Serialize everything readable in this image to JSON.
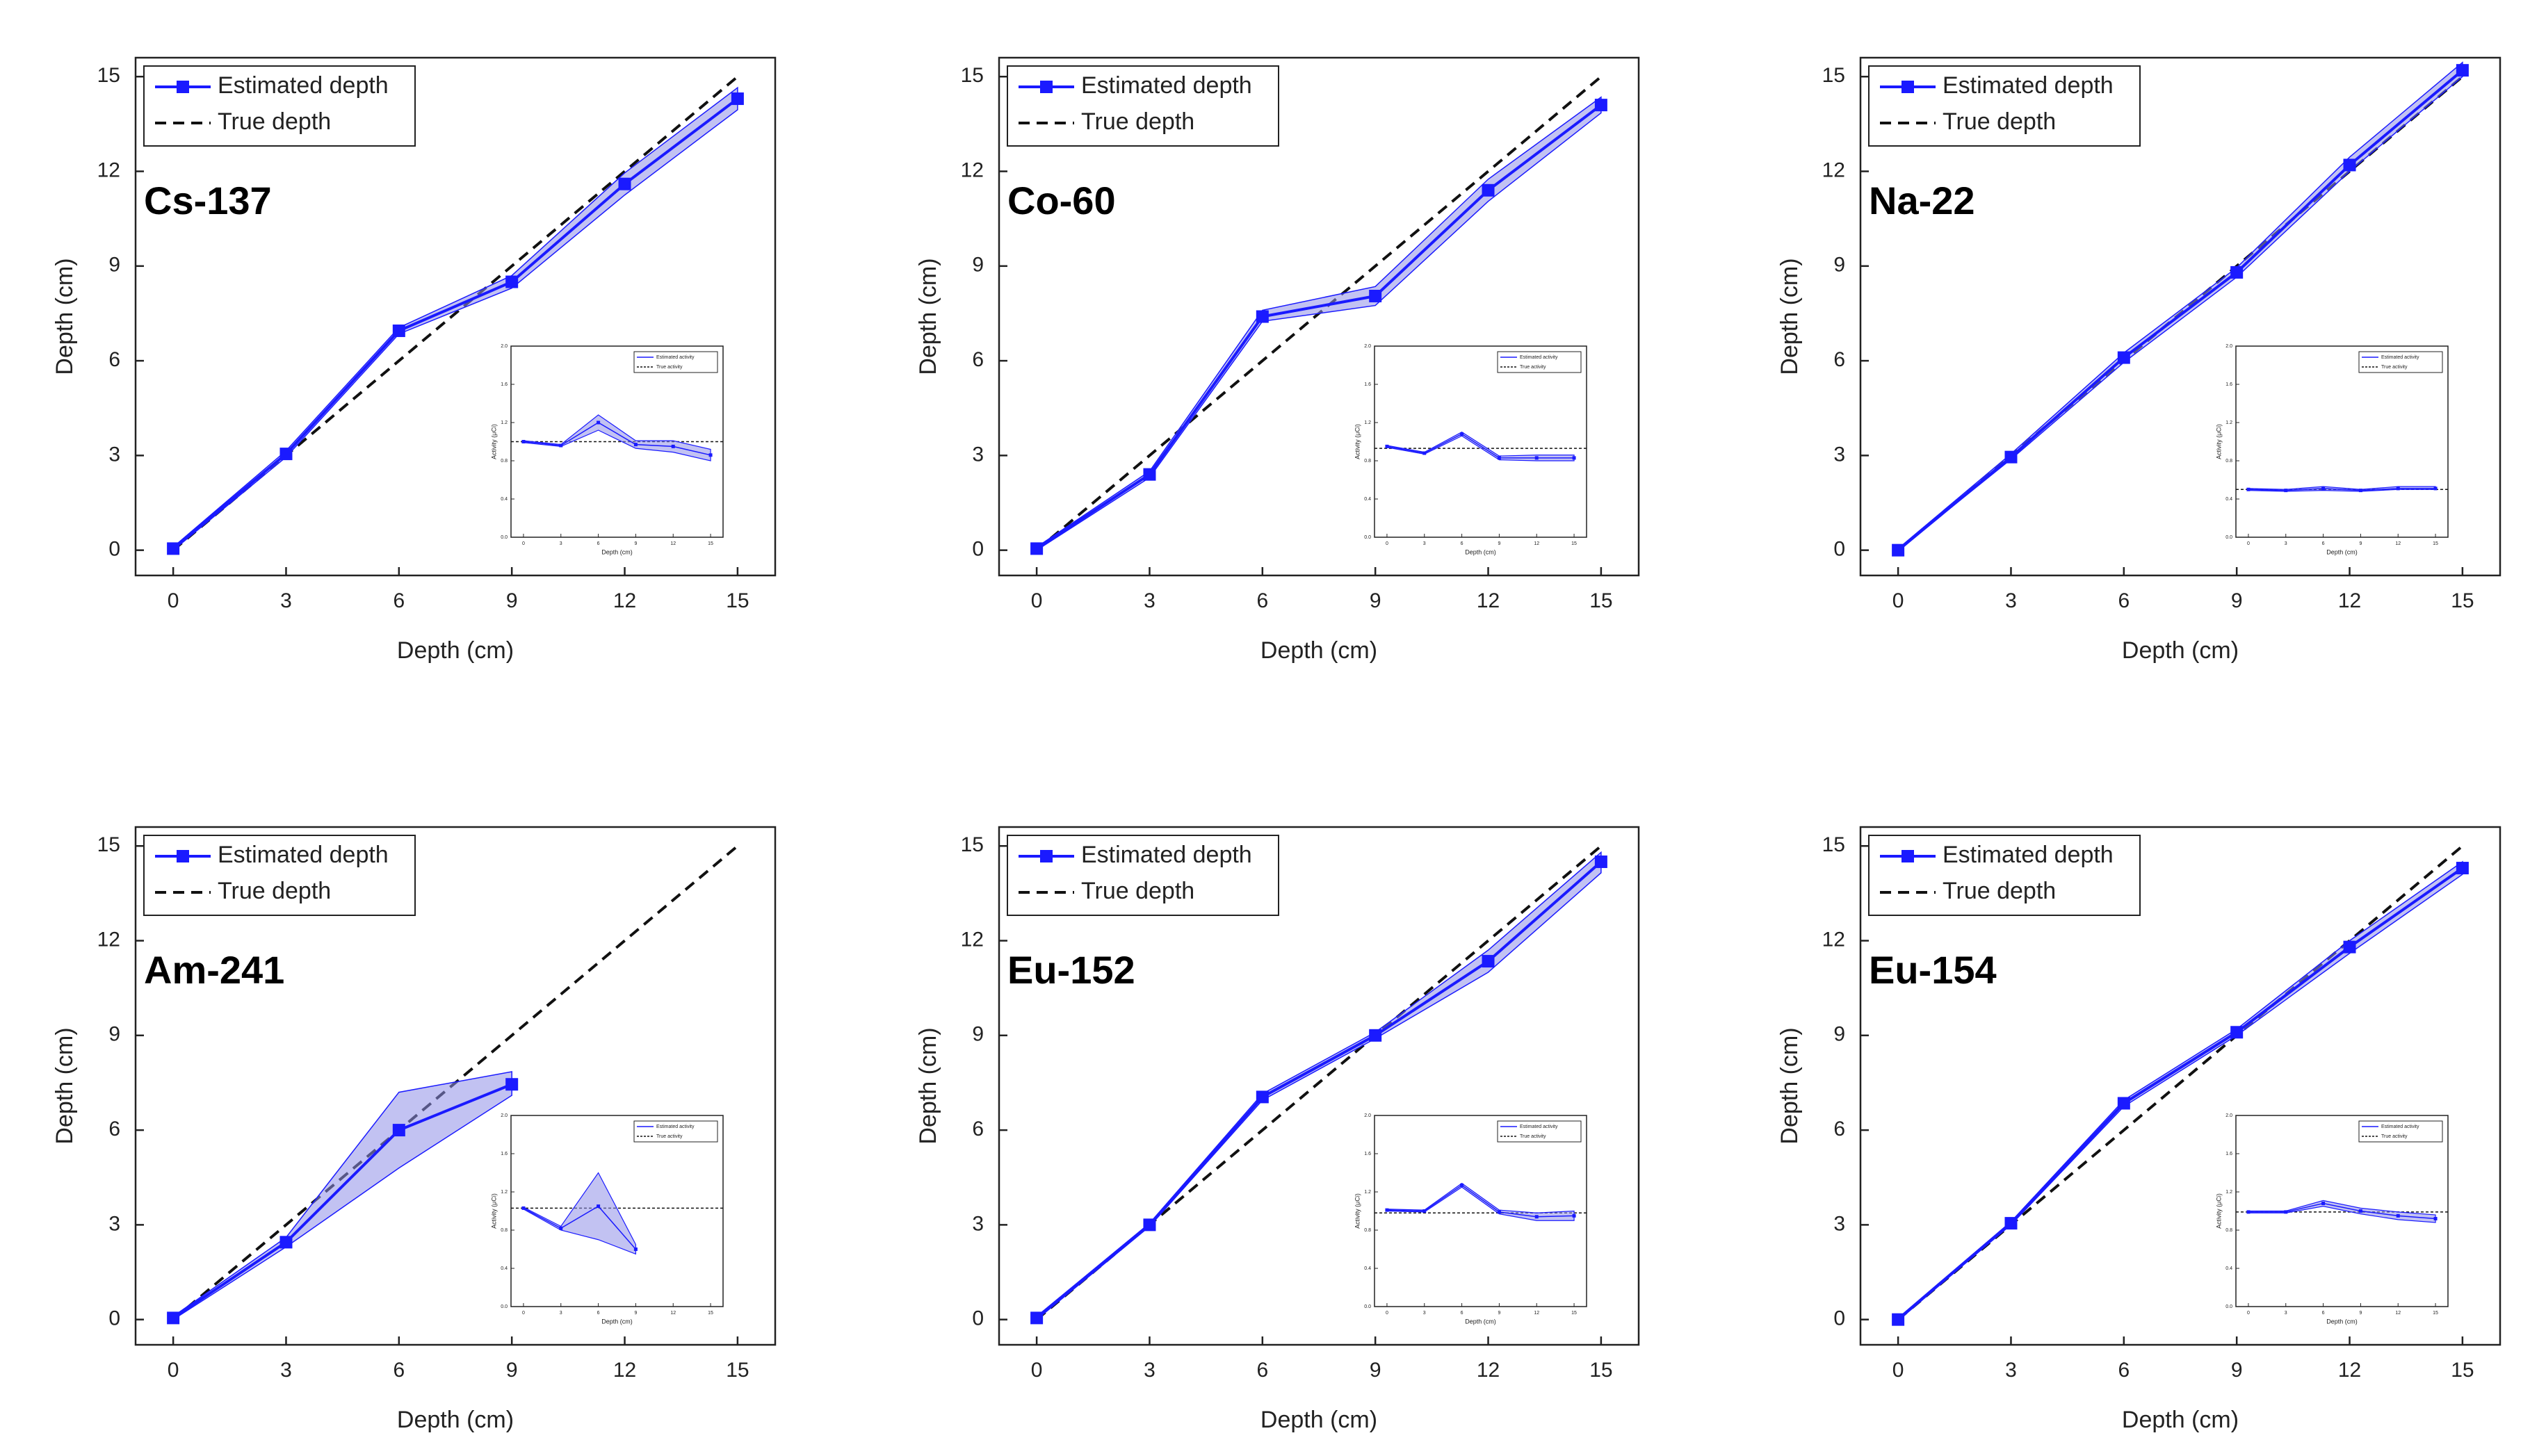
{
  "colors": {
    "estimated": "#1a1aff",
    "band": "#8f8fe8",
    "true_line": "#111111",
    "axis": "#222222",
    "background": "#ffffff"
  },
  "chart_data": [
    {
      "type": "line",
      "title": "Cs-137",
      "xlabel": "Depth (cm)",
      "ylabel": "Depth (cm)",
      "xlim": [
        -1,
        16
      ],
      "ylim": [
        -0.8,
        15.6
      ],
      "xticks": [
        0,
        3,
        6,
        9,
        12,
        15
      ],
      "yticks": [
        0,
        3,
        6,
        9,
        12,
        15
      ],
      "legend": [
        "Estimated depth",
        "True depth"
      ],
      "legend_position": "top-left",
      "series": [
        {
          "name": "Estimated depth",
          "x": [
            0,
            3,
            6,
            9,
            12,
            15
          ],
          "y": [
            0.05,
            3.05,
            6.95,
            8.5,
            11.6,
            14.3
          ],
          "lower": [
            0.0,
            2.95,
            6.85,
            8.3,
            11.25,
            13.95
          ],
          "upper": [
            0.1,
            3.15,
            7.05,
            8.7,
            11.95,
            14.65
          ]
        },
        {
          "name": "True depth",
          "x": [
            0,
            15
          ],
          "y": [
            0,
            15
          ]
        }
      ],
      "inset": {
        "xlabel": "Depth (cm)",
        "ylabel": "Activity (μCi)",
        "xlim": [
          -1,
          16
        ],
        "ylim": [
          0.0,
          2.0
        ],
        "xticks": [
          0,
          3,
          6,
          9,
          12,
          15
        ],
        "yticks": [
          0.0,
          0.4,
          0.8,
          1.2,
          1.6,
          2.0
        ],
        "legend": [
          "Estimated activity",
          "True activity"
        ],
        "true_value": 1.0,
        "series": [
          {
            "name": "Estimated activity",
            "x": [
              0,
              3,
              6,
              9,
              12,
              15
            ],
            "y": [
              1.0,
              0.96,
              1.2,
              0.97,
              0.95,
              0.86
            ],
            "lower": [
              0.99,
              0.95,
              1.12,
              0.93,
              0.89,
              0.8
            ],
            "upper": [
              1.01,
              0.97,
              1.28,
              1.01,
              1.01,
              0.92
            ]
          }
        ]
      }
    },
    {
      "type": "line",
      "title": "Co-60",
      "xlabel": "Depth (cm)",
      "ylabel": "Depth (cm)",
      "xlim": [
        -1,
        16
      ],
      "ylim": [
        -0.8,
        15.6
      ],
      "xticks": [
        0,
        3,
        6,
        9,
        12,
        15
      ],
      "yticks": [
        0,
        3,
        6,
        9,
        12,
        15
      ],
      "legend": [
        "Estimated depth",
        "True depth"
      ],
      "legend_position": "top-left",
      "series": [
        {
          "name": "Estimated depth",
          "x": [
            0,
            3,
            6,
            9,
            12,
            15
          ],
          "y": [
            0.05,
            2.4,
            7.4,
            8.05,
            11.4,
            14.1
          ],
          "lower": [
            0.0,
            2.3,
            7.25,
            7.75,
            11.05,
            13.85
          ],
          "upper": [
            0.1,
            2.5,
            7.6,
            8.35,
            11.75,
            14.35
          ]
        },
        {
          "name": "True depth",
          "x": [
            0,
            15
          ],
          "y": [
            0,
            15
          ]
        }
      ],
      "inset": {
        "xlabel": "Depth (cm)",
        "ylabel": "Activity (μCi)",
        "xlim": [
          -1,
          16
        ],
        "ylim": [
          0.0,
          2.0
        ],
        "xticks": [
          0,
          3,
          6,
          9,
          12,
          15
        ],
        "yticks": [
          0.0,
          0.4,
          0.8,
          1.2,
          1.6,
          2.0
        ],
        "legend": [
          "Estimated activity",
          "True activity"
        ],
        "true_value": 0.93,
        "series": [
          {
            "name": "Estimated activity",
            "x": [
              0,
              3,
              6,
              9,
              12,
              15
            ],
            "y": [
              0.95,
              0.88,
              1.08,
              0.83,
              0.83,
              0.83
            ],
            "lower": [
              0.94,
              0.87,
              1.06,
              0.81,
              0.8,
              0.8
            ],
            "upper": [
              0.96,
              0.89,
              1.1,
              0.85,
              0.86,
              0.86
            ]
          }
        ]
      }
    },
    {
      "type": "line",
      "title": "Na-22",
      "xlabel": "Depth (cm)",
      "ylabel": "Depth (cm)",
      "xlim": [
        -1,
        16
      ],
      "ylim": [
        -0.8,
        15.6
      ],
      "xticks": [
        0,
        3,
        6,
        9,
        12,
        15
      ],
      "yticks": [
        0,
        3,
        6,
        9,
        12,
        15
      ],
      "legend": [
        "Estimated depth",
        "True depth"
      ],
      "legend_position": "top-left",
      "series": [
        {
          "name": "Estimated depth",
          "x": [
            0,
            3,
            6,
            9,
            12,
            15
          ],
          "y": [
            0.0,
            2.95,
            6.1,
            8.8,
            12.2,
            15.2
          ],
          "lower": [
            0.0,
            2.88,
            5.95,
            8.65,
            12.0,
            15.0
          ],
          "upper": [
            0.05,
            3.05,
            6.25,
            8.95,
            12.45,
            15.45
          ]
        },
        {
          "name": "True depth",
          "x": [
            0,
            15
          ],
          "y": [
            0,
            15
          ]
        }
      ],
      "inset": {
        "xlabel": "Depth (cm)",
        "ylabel": "Activity (μCi)",
        "xlim": [
          -1,
          16
        ],
        "ylim": [
          0.0,
          2.0
        ],
        "xticks": [
          0,
          3,
          6,
          9,
          12,
          15
        ],
        "yticks": [
          0.0,
          0.4,
          0.8,
          1.2,
          1.6,
          2.0
        ],
        "legend": [
          "Estimated activity",
          "True activity"
        ],
        "true_value": 0.5,
        "series": [
          {
            "name": "Estimated activity",
            "x": [
              0,
              3,
              6,
              9,
              12,
              15
            ],
            "y": [
              0.5,
              0.49,
              0.51,
              0.49,
              0.51,
              0.51
            ],
            "lower": [
              0.49,
              0.48,
              0.49,
              0.48,
              0.5,
              0.5
            ],
            "upper": [
              0.51,
              0.5,
              0.53,
              0.5,
              0.53,
              0.53
            ]
          }
        ]
      }
    },
    {
      "type": "line",
      "title": "Am-241",
      "xlabel": "Depth (cm)",
      "ylabel": "Depth (cm)",
      "xlim": [
        -1,
        16
      ],
      "ylim": [
        -0.8,
        15.6
      ],
      "xticks": [
        0,
        3,
        6,
        9,
        12,
        15
      ],
      "yticks": [
        0,
        3,
        6,
        9,
        12,
        15
      ],
      "legend": [
        "Estimated depth",
        "True depth"
      ],
      "legend_position": "top-left",
      "series": [
        {
          "name": "Estimated depth",
          "x": [
            0,
            3,
            6,
            9
          ],
          "y": [
            0.05,
            2.45,
            6.0,
            7.45
          ],
          "lower": [
            0.0,
            2.3,
            4.8,
            7.1
          ],
          "upper": [
            0.1,
            2.6,
            7.2,
            7.85
          ]
        },
        {
          "name": "True depth",
          "x": [
            0,
            15
          ],
          "y": [
            0,
            15
          ]
        }
      ],
      "inset": {
        "xlabel": "Depth (cm)",
        "ylabel": "Activity (μCi)",
        "xlim": [
          -1,
          16
        ],
        "ylim": [
          0.0,
          2.0
        ],
        "xticks": [
          0,
          3,
          6,
          9,
          12,
          15
        ],
        "yticks": [
          0.0,
          0.4,
          0.8,
          1.2,
          1.6,
          2.0
        ],
        "legend": [
          "Estimated activity",
          "True activity"
        ],
        "true_value": 1.03,
        "series": [
          {
            "name": "Estimated activity",
            "x": [
              0,
              3,
              6,
              9
            ],
            "y": [
              1.03,
              0.82,
              1.05,
              0.6
            ],
            "lower": [
              1.02,
              0.8,
              0.7,
              0.55
            ],
            "upper": [
              1.04,
              0.84,
              1.4,
              0.65
            ]
          }
        ]
      }
    },
    {
      "type": "line",
      "title": "Eu-152",
      "xlabel": "Depth (cm)",
      "ylabel": "Depth (cm)",
      "xlim": [
        -1,
        16
      ],
      "ylim": [
        -0.8,
        15.6
      ],
      "xticks": [
        0,
        3,
        6,
        9,
        12,
        15
      ],
      "yticks": [
        0,
        3,
        6,
        9,
        12,
        15
      ],
      "legend": [
        "Estimated depth",
        "True depth"
      ],
      "legend_position": "top-left",
      "series": [
        {
          "name": "Estimated depth",
          "x": [
            0,
            3,
            6,
            9,
            12,
            15
          ],
          "y": [
            0.05,
            3.0,
            7.05,
            9.0,
            11.35,
            14.5
          ],
          "lower": [
            0.0,
            2.95,
            6.95,
            8.9,
            11.0,
            14.15
          ],
          "upper": [
            0.1,
            3.05,
            7.15,
            9.1,
            11.7,
            14.8
          ]
        },
        {
          "name": "True depth",
          "x": [
            0,
            15
          ],
          "y": [
            0,
            15
          ]
        }
      ],
      "inset": {
        "xlabel": "Depth (cm)",
        "ylabel": "Activity (μCi)",
        "xlim": [
          -1,
          16
        ],
        "ylim": [
          0.0,
          2.0
        ],
        "xticks": [
          0,
          3,
          6,
          9,
          12,
          15
        ],
        "yticks": [
          0.0,
          0.4,
          0.8,
          1.2,
          1.6,
          2.0
        ],
        "legend": [
          "Estimated activity",
          "True activity"
        ],
        "true_value": 0.98,
        "series": [
          {
            "name": "Estimated activity",
            "x": [
              0,
              3,
              6,
              9,
              12,
              15
            ],
            "y": [
              1.01,
              1.0,
              1.27,
              0.99,
              0.94,
              0.95
            ],
            "lower": [
              1.0,
              0.99,
              1.25,
              0.97,
              0.9,
              0.9
            ],
            "upper": [
              1.02,
              1.01,
              1.29,
              1.01,
              0.98,
              1.0
            ]
          }
        ]
      }
    },
    {
      "type": "line",
      "title": "Eu-154",
      "xlabel": "Depth (cm)",
      "ylabel": "Depth (cm)",
      "xlim": [
        -1,
        16
      ],
      "ylim": [
        -0.8,
        15.6
      ],
      "xticks": [
        0,
        3,
        6,
        9,
        12,
        15
      ],
      "yticks": [
        0,
        3,
        6,
        9,
        12,
        15
      ],
      "legend": [
        "Estimated depth",
        "True depth"
      ],
      "legend_position": "top-left",
      "series": [
        {
          "name": "Estimated depth",
          "x": [
            0,
            3,
            6,
            9,
            12,
            15
          ],
          "y": [
            0.0,
            3.05,
            6.85,
            9.1,
            11.8,
            14.3
          ],
          "lower": [
            0.0,
            3.0,
            6.75,
            9.0,
            11.6,
            14.1
          ],
          "upper": [
            0.05,
            3.1,
            6.95,
            9.2,
            12.0,
            14.5
          ]
        },
        {
          "name": "True depth",
          "x": [
            0,
            15
          ],
          "y": [
            0,
            15
          ]
        }
      ],
      "inset": {
        "xlabel": "Depth (cm)",
        "ylabel": "Activity (μCi)",
        "xlim": [
          -1,
          16
        ],
        "ylim": [
          0.0,
          2.0
        ],
        "xticks": [
          0,
          3,
          6,
          9,
          12,
          15
        ],
        "yticks": [
          0.0,
          0.4,
          0.8,
          1.2,
          1.6,
          2.0
        ],
        "legend": [
          "Estimated activity",
          "True activity"
        ],
        "true_value": 0.99,
        "series": [
          {
            "name": "Estimated activity",
            "x": [
              0,
              3,
              6,
              9,
              12,
              15
            ],
            "y": [
              0.99,
              0.99,
              1.08,
              1.0,
              0.95,
              0.92
            ],
            "lower": [
              0.98,
              0.98,
              1.05,
              0.97,
              0.91,
              0.88
            ],
            "upper": [
              1.0,
              1.0,
              1.11,
              1.03,
              0.99,
              0.96
            ]
          }
        ]
      }
    }
  ]
}
